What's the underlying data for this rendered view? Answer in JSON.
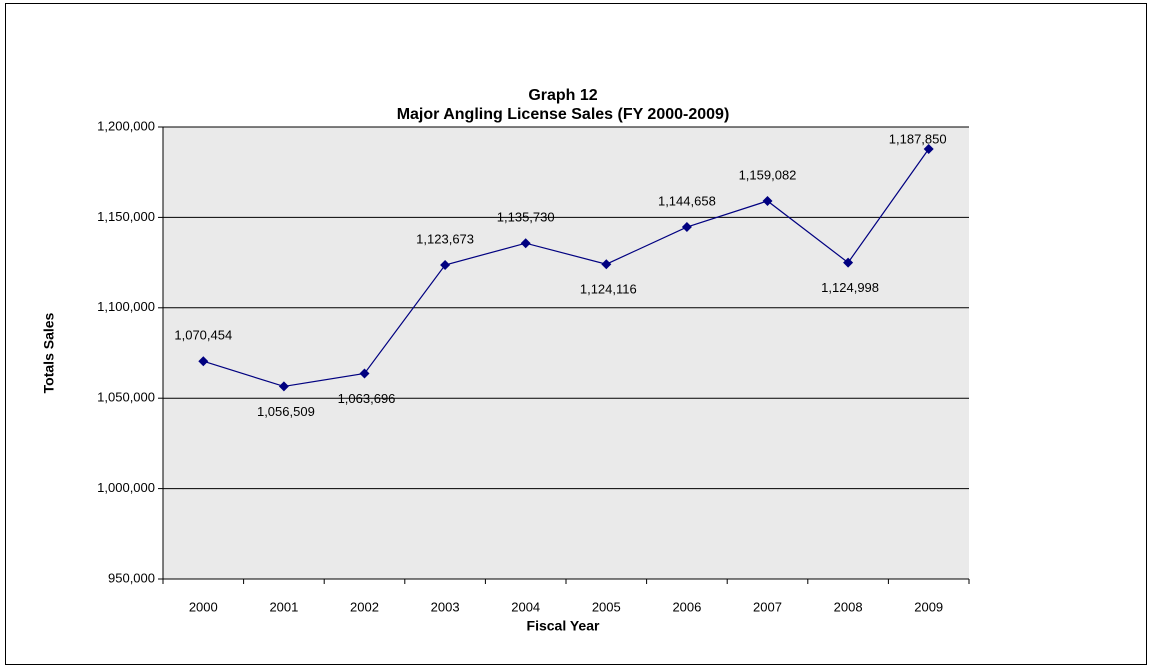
{
  "chart_data": {
    "type": "line",
    "title": "Graph 12",
    "subtitle": "Major Angling License Sales (FY 2000-2009)",
    "x_label": "Fiscal Year",
    "y_label": "Totals Sales",
    "categories": [
      "2000",
      "2001",
      "2002",
      "2003",
      "2004",
      "2005",
      "2006",
      "2007",
      "2008",
      "2009"
    ],
    "series": [
      {
        "name": "Major Angling License Sales",
        "color": "#000080",
        "values": [
          1070454,
          1056509,
          1063696,
          1123673,
          1135730,
          1124116,
          1144658,
          1159082,
          1124998,
          1187850
        ],
        "value_labels": [
          "1,070,454",
          "1,056,509",
          "1,063,696",
          "1,123,673",
          "1,135,730",
          "1,124,116",
          "1,144,658",
          "1,159,082",
          "1,124,998",
          "1,187,850"
        ]
      }
    ],
    "ylim": [
      950000,
      1200000
    ],
    "yticks": [
      {
        "value": 950000,
        "label": "950,000"
      },
      {
        "value": 1000000,
        "label": "1,000,000"
      },
      {
        "value": 1050000,
        "label": "1,050,000"
      },
      {
        "value": 1100000,
        "label": "1,100,000"
      },
      {
        "value": 1150000,
        "label": "1,150,000"
      },
      {
        "value": 1200000,
        "label": "1,200,000"
      }
    ],
    "grid": true
  }
}
